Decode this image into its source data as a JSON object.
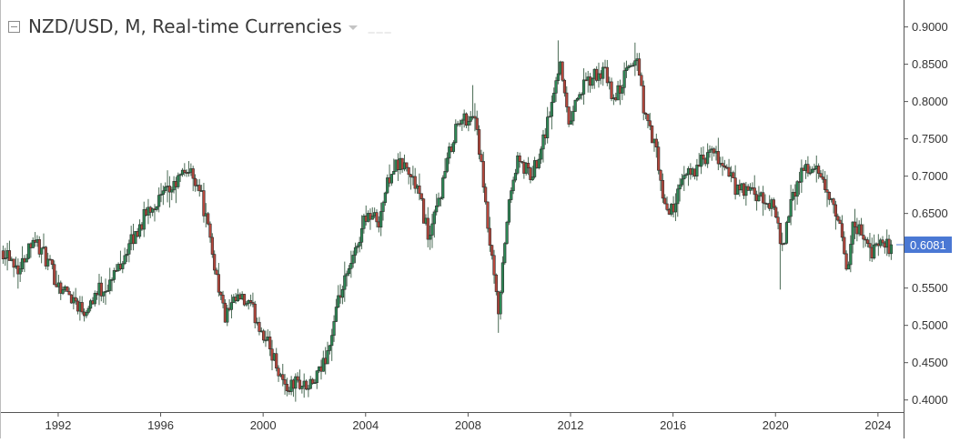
{
  "header": {
    "title": "NZD/USD, M, Real-time Currencies",
    "dashes": "___"
  },
  "colors": {
    "up": "#2e8b57",
    "down": "#b7473c",
    "wick": "#4a6b55",
    "price_label_bg": "#4a78d4",
    "axis": "#555555",
    "text": "#333333"
  },
  "chart_data": {
    "type": "candlestick",
    "title": "NZD/USD, M, Real-time Currencies",
    "interval": "M",
    "x_tick_labels": [
      "1992",
      "1996",
      "2000",
      "2004",
      "2008",
      "2012",
      "2016",
      "2020",
      "2024"
    ],
    "y_tick_labels": [
      "0.9000",
      "0.8500",
      "0.8000",
      "0.7500",
      "0.7000",
      "0.6500",
      "0.5500",
      "0.5000",
      "0.4500",
      "0.4000"
    ],
    "ylim": [
      0.385,
      0.93
    ],
    "xlim": [
      1989.8,
      2025.0
    ],
    "last_price": "0.6081",
    "grid": false,
    "anchors": [
      [
        1990.0,
        0.6
      ],
      [
        1990.5,
        0.575
      ],
      [
        1991.0,
        0.62
      ],
      [
        1991.5,
        0.59
      ],
      [
        1992.0,
        0.555
      ],
      [
        1992.5,
        0.54
      ],
      [
        1993.0,
        0.52
      ],
      [
        1993.5,
        0.545
      ],
      [
        1994.0,
        0.555
      ],
      [
        1994.5,
        0.59
      ],
      [
        1995.0,
        0.62
      ],
      [
        1995.5,
        0.655
      ],
      [
        1996.0,
        0.67
      ],
      [
        1996.5,
        0.685
      ],
      [
        1997.0,
        0.71
      ],
      [
        1997.5,
        0.69
      ],
      [
        1998.0,
        0.6
      ],
      [
        1998.5,
        0.51
      ],
      [
        1999.0,
        0.535
      ],
      [
        1999.5,
        0.525
      ],
      [
        2000.0,
        0.49
      ],
      [
        2000.5,
        0.45
      ],
      [
        2000.9,
        0.415
      ],
      [
        2001.3,
        0.425
      ],
      [
        2001.8,
        0.415
      ],
      [
        2002.2,
        0.435
      ],
      [
        2002.6,
        0.475
      ],
      [
        2003.0,
        0.54
      ],
      [
        2003.5,
        0.585
      ],
      [
        2004.0,
        0.65
      ],
      [
        2004.5,
        0.64
      ],
      [
        2005.0,
        0.71
      ],
      [
        2005.5,
        0.715
      ],
      [
        2006.0,
        0.685
      ],
      [
        2006.5,
        0.615
      ],
      [
        2007.0,
        0.69
      ],
      [
        2007.5,
        0.765
      ],
      [
        2008.0,
        0.78
      ],
      [
        2008.3,
        0.78
      ],
      [
        2008.7,
        0.65
      ],
      [
        2009.0,
        0.565
      ],
      [
        2009.2,
        0.51
      ],
      [
        2009.5,
        0.64
      ],
      [
        2009.9,
        0.72
      ],
      [
        2010.5,
        0.7
      ],
      [
        2011.0,
        0.76
      ],
      [
        2011.3,
        0.8
      ],
      [
        2011.6,
        0.86
      ],
      [
        2011.9,
        0.77
      ],
      [
        2012.3,
        0.81
      ],
      [
        2012.8,
        0.83
      ],
      [
        2013.3,
        0.84
      ],
      [
        2013.7,
        0.8
      ],
      [
        2014.2,
        0.84
      ],
      [
        2014.6,
        0.86
      ],
      [
        2014.9,
        0.78
      ],
      [
        2015.3,
        0.74
      ],
      [
        2015.7,
        0.65
      ],
      [
        2016.0,
        0.66
      ],
      [
        2016.5,
        0.7
      ],
      [
        2017.0,
        0.715
      ],
      [
        2017.5,
        0.73
      ],
      [
        2018.0,
        0.715
      ],
      [
        2018.5,
        0.68
      ],
      [
        2019.0,
        0.68
      ],
      [
        2019.5,
        0.665
      ],
      [
        2020.0,
        0.66
      ],
      [
        2020.2,
        0.595
      ],
      [
        2020.6,
        0.66
      ],
      [
        2021.0,
        0.71
      ],
      [
        2021.5,
        0.71
      ],
      [
        2022.0,
        0.68
      ],
      [
        2022.5,
        0.63
      ],
      [
        2022.8,
        0.575
      ],
      [
        2023.0,
        0.635
      ],
      [
        2023.5,
        0.62
      ],
      [
        2023.8,
        0.595
      ],
      [
        2024.0,
        0.61
      ],
      [
        2024.3,
        0.605
      ],
      [
        2024.55,
        0.6081
      ]
    ]
  }
}
